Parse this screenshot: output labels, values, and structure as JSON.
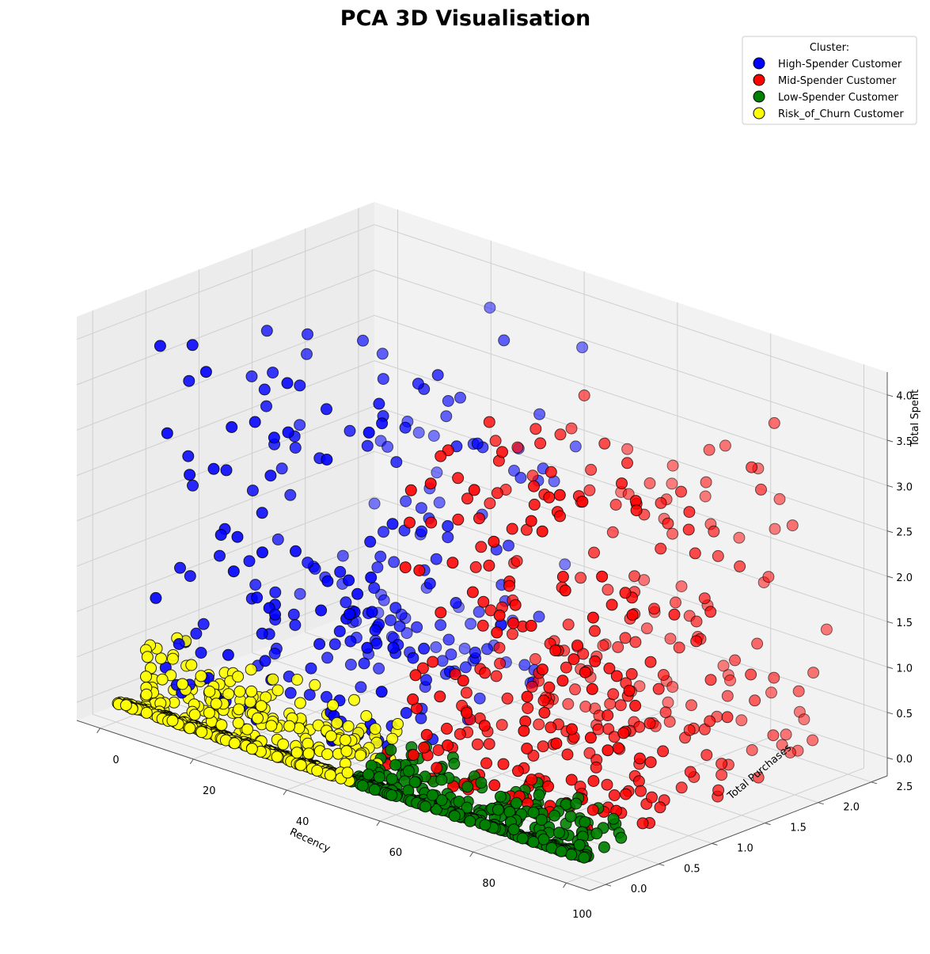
{
  "chart_data": {
    "type": "scatter",
    "title": "PCA 3D Visualisation",
    "xlabel": "Recency",
    "ylabel": "Total Purchases",
    "zlabel": "Total Spent",
    "xlim": [
      -5,
      105
    ],
    "ylim": [
      -0.15,
      2.65
    ],
    "zlim": [
      -0.2,
      4.25
    ],
    "xticks": [
      "0",
      "20",
      "40",
      "60",
      "80",
      "100"
    ],
    "yticks": [
      "0.0",
      "0.5",
      "1.0",
      "1.5",
      "2.0",
      "2.5"
    ],
    "zticks": [
      "0.0",
      "0.5",
      "1.0",
      "1.5",
      "2.0",
      "2.5",
      "3.0",
      "3.5",
      "4.0"
    ],
    "grid": true,
    "legend": {
      "title": "Cluster:",
      "position": "top-right"
    },
    "series": [
      {
        "name": "High-Spender Customer",
        "color": "#0000ff",
        "recency": [
          0,
          50
        ],
        "purchases": [
          0.35,
          2.5
        ],
        "spent": [
          0.0,
          3.9
        ],
        "count": 260
      },
      {
        "name": "Mid-Spender Customer",
        "color": "#ff0000",
        "recency": [
          50,
          100
        ],
        "purchases": [
          0.35,
          2.5
        ],
        "spent": [
          0.0,
          3.7
        ],
        "count": 380
      },
      {
        "name": "Low-Spender Customer",
        "color": "#008000",
        "recency": [
          50,
          100
        ],
        "purchases": [
          0.0,
          0.55
        ],
        "spent": [
          0.0,
          0.25
        ],
        "count": 330
      },
      {
        "name": "Risk_of_Churn Customer",
        "color": "#ffff00",
        "recency": [
          0,
          50
        ],
        "purchases": [
          0.0,
          0.55
        ],
        "spent": [
          0.0,
          0.6
        ],
        "count": 420
      }
    ]
  }
}
